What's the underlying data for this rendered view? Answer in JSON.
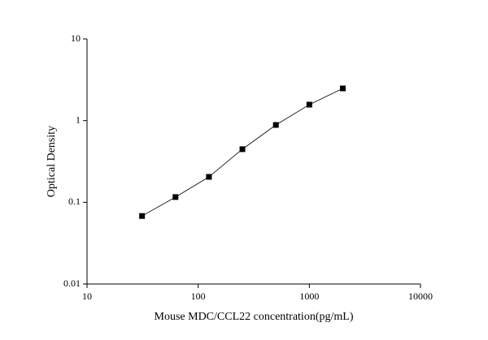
{
  "chart_data": {
    "type": "scatter",
    "x_label": "Mouse MDC/CCL22 concentration(pg/mL)",
    "y_label": "Optical Density",
    "x": [
      31.25,
      62.5,
      125,
      250,
      500,
      1000,
      2000
    ],
    "values": [
      0.068,
      0.116,
      0.205,
      0.447,
      0.885,
      1.57,
      2.48
    ],
    "color": "#000000",
    "line": true,
    "xlog": true,
    "ylog": true,
    "xlim": [
      10,
      10000
    ],
    "ylim": [
      0.01,
      10
    ],
    "xticks": [
      10,
      100,
      1000,
      10000
    ],
    "yticks": [
      0.01,
      0.1,
      1,
      10
    ]
  }
}
